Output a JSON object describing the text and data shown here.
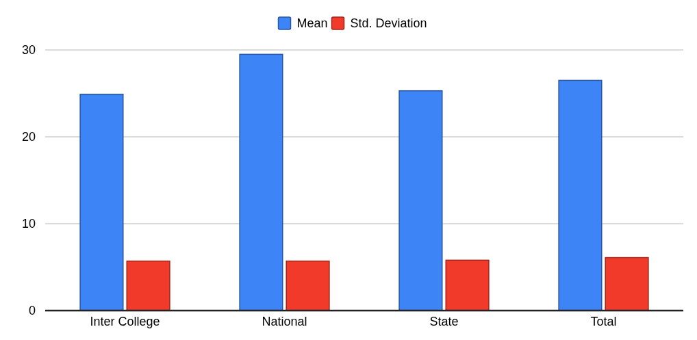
{
  "chart_data": {
    "type": "bar",
    "categories": [
      "Inter College",
      "National",
      "State",
      "Total"
    ],
    "series": [
      {
        "name": "Mean",
        "color": "#3d85f6",
        "values": [
          24.9,
          29.5,
          25.3,
          26.5
        ]
      },
      {
        "name": "Std. Deviation",
        "color": "#f23a2a",
        "values": [
          5.7,
          5.7,
          5.8,
          6.1
        ]
      }
    ],
    "ylim": [
      0,
      30
    ],
    "yticks": [
      0,
      10,
      20,
      30
    ],
    "grid": "y",
    "legend": "top"
  }
}
